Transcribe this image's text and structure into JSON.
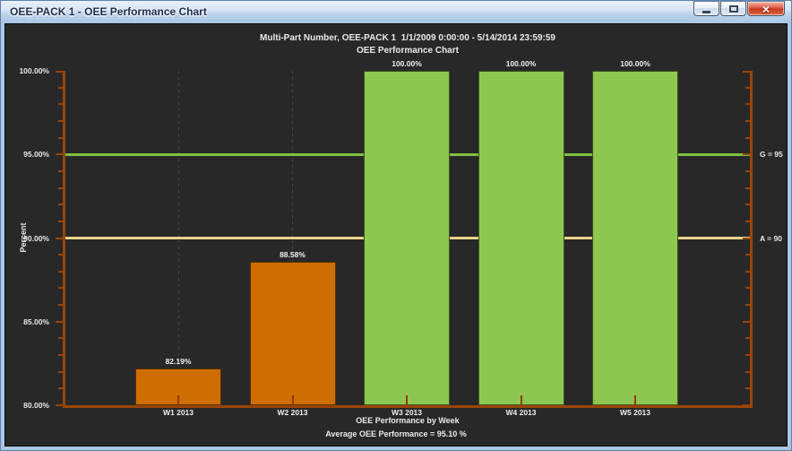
{
  "window": {
    "title": "OEE-PACK 1 - OEE Performance Chart",
    "controls": {
      "minimize": "minimize",
      "maximize": "maximize",
      "close": "close",
      "close_glyph": "×"
    }
  },
  "chart_data": {
    "type": "bar",
    "subtitle": "Multi-Part Number, OEE-PACK 1  1/1/2009 0:00:00 - 5/14/2014 23:59:59",
    "title": "OEE Performance Chart",
    "categories": [
      "W1 2013",
      "W2 2013",
      "W3 2013",
      "W4 2013",
      "W5 2013"
    ],
    "values": [
      82.19,
      88.58,
      100.0,
      100.0,
      100.0
    ],
    "value_labels": [
      "82.19%",
      "88.58%",
      "100.00%",
      "100.00%",
      "100.00%"
    ],
    "bar_colors": [
      "#cf6e00",
      "#cf6e00",
      "#8dc74f",
      "#8dc74f",
      "#8dc74f"
    ],
    "xlabel": "OEE Performance by Week",
    "ylabel": "Percent",
    "ylim": [
      80,
      100
    ],
    "y_ticks": [
      80,
      85,
      90,
      95,
      100
    ],
    "y_tick_labels": [
      "80.00%",
      "85.00%",
      "90.00%",
      "95.00%",
      "100.00%"
    ],
    "minor_tick_step_pct": 1,
    "grid": "vertical-dashed-per-category",
    "legend": "none",
    "reference_lines": [
      {
        "name": "goal",
        "label": "G = 95",
        "value": 95,
        "color": "#7fc142"
      },
      {
        "name": "amber",
        "label": "A = 90",
        "value": 90,
        "color": "#e9d189"
      }
    ],
    "footer": "Average OEE Performance = 95.10 %"
  },
  "colors": {
    "background": "#282828",
    "axis": "#9a4408",
    "axis_tick_inner": "#8f3d05",
    "gridline": "#424242",
    "text": "#eaeaea",
    "bar_orange": "#cf6e00",
    "bar_green": "#8dc74f",
    "goal_line": "#7fc142",
    "amber_line": "#e9d189",
    "titlebar_text": "#1d2f4d",
    "close_button": "#c23a20"
  }
}
